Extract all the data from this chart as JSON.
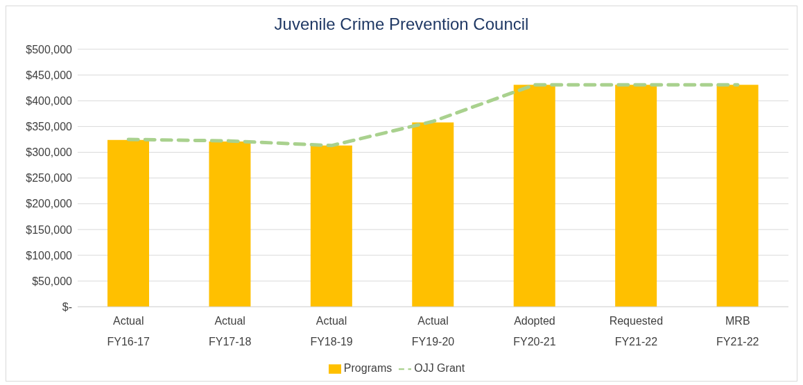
{
  "chart_data": {
    "type": "bar",
    "title": "Juvenile Crime Prevention Council",
    "categories": [
      "Actual\nFY16-17",
      "Actual\nFY17-18",
      "Actual\nFY18-19",
      "Actual\nFY19-20",
      "Adopted\nFY20-21",
      "Requested\nFY21-22",
      "MRB\nFY21-22"
    ],
    "series": [
      {
        "name": "Programs",
        "color": "#ffc000",
        "values": [
          324000,
          321000,
          313000,
          358000,
          431000,
          431000,
          431000
        ]
      },
      {
        "name": "OJJ Grant",
        "type": "line",
        "color": "#a9d18e",
        "line_style": "dashed",
        "marker": "none",
        "values": [
          325000,
          322000,
          313000,
          360000,
          431000,
          431000,
          431000
        ]
      }
    ],
    "ylim": [
      0,
      500000
    ],
    "yticks": [
      {
        "value": 0,
        "label": "$-"
      },
      {
        "value": 50000,
        "label": "$50,000"
      },
      {
        "value": 100000,
        "label": "$100,000"
      },
      {
        "value": 150000,
        "label": "$150,000"
      },
      {
        "value": 200000,
        "label": "$200,000"
      },
      {
        "value": 250000,
        "label": "$250,000"
      },
      {
        "value": 300000,
        "label": "$300,000"
      },
      {
        "value": 350000,
        "label": "$350,000"
      },
      {
        "value": 400000,
        "label": "$400,000"
      },
      {
        "value": 450000,
        "label": "$450,000"
      },
      {
        "value": 500000,
        "label": "$500,000"
      }
    ],
    "grid": "y",
    "legend": "bottom"
  }
}
